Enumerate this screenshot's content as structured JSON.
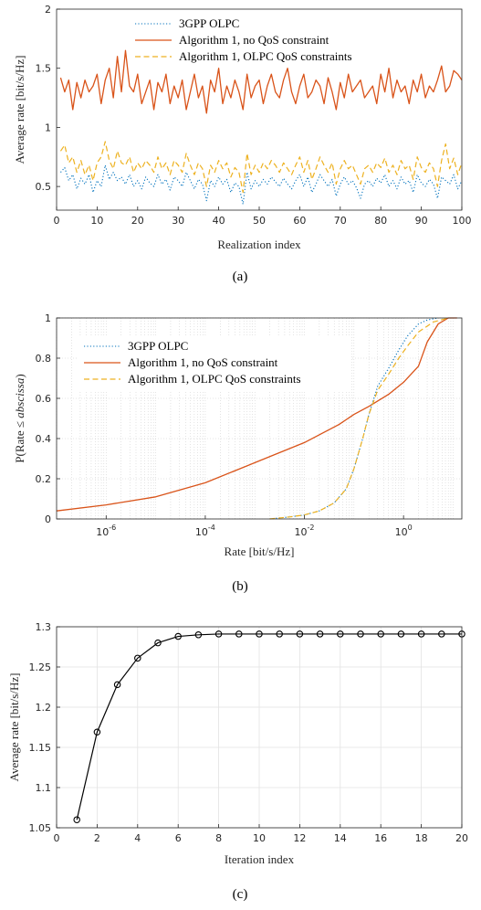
{
  "colors": {
    "blue": "#0072BD",
    "orange": "#D95319",
    "yellow": "#EDB120",
    "black": "#000000"
  },
  "chart_data": [
    {
      "type": "line",
      "caption": "(a)",
      "xlabel": "Realization index",
      "ylabel": "Average rate [bit/s/Hz]",
      "xlim": [
        0,
        100
      ],
      "ylim": [
        0.3,
        2
      ],
      "xticks": [
        0,
        10,
        20,
        30,
        40,
        50,
        60,
        70,
        80,
        90,
        100
      ],
      "yticks": [
        0.5,
        1,
        1.5,
        2
      ],
      "ytick_labels": [
        "0.5",
        "1",
        "1.5",
        "2"
      ],
      "grid": false,
      "legend": "top-center",
      "series": [
        {
          "name": "3GPP OLPC",
          "style": "dotted",
          "values": [
            0.62,
            0.66,
            0.55,
            0.6,
            0.48,
            0.57,
            0.52,
            0.6,
            0.45,
            0.55,
            0.5,
            0.68,
            0.56,
            0.62,
            0.55,
            0.58,
            0.52,
            0.6,
            0.5,
            0.55,
            0.48,
            0.58,
            0.53,
            0.5,
            0.6,
            0.52,
            0.56,
            0.47,
            0.58,
            0.55,
            0.5,
            0.62,
            0.55,
            0.48,
            0.56,
            0.52,
            0.38,
            0.55,
            0.5,
            0.58,
            0.52,
            0.56,
            0.45,
            0.53,
            0.5,
            0.35,
            0.62,
            0.48,
            0.55,
            0.5,
            0.56,
            0.52,
            0.58,
            0.54,
            0.5,
            0.57,
            0.52,
            0.48,
            0.55,
            0.6,
            0.5,
            0.58,
            0.45,
            0.52,
            0.6,
            0.55,
            0.5,
            0.56,
            0.42,
            0.52,
            0.58,
            0.52,
            0.55,
            0.49,
            0.4,
            0.52,
            0.55,
            0.5,
            0.57,
            0.53,
            0.6,
            0.5,
            0.55,
            0.48,
            0.58,
            0.52,
            0.55,
            0.45,
            0.6,
            0.53,
            0.5,
            0.56,
            0.52,
            0.4,
            0.58,
            0.55,
            0.52,
            0.6,
            0.48,
            0.55
          ]
        },
        {
          "name": "Algorithm 1, no QoS constraint",
          "style": "solid",
          "values": [
            1.42,
            1.3,
            1.4,
            1.15,
            1.38,
            1.25,
            1.4,
            1.3,
            1.35,
            1.45,
            1.2,
            1.4,
            1.5,
            1.25,
            1.6,
            1.3,
            1.65,
            1.35,
            1.3,
            1.45,
            1.2,
            1.3,
            1.4,
            1.15,
            1.38,
            1.3,
            1.45,
            1.2,
            1.35,
            1.25,
            1.4,
            1.15,
            1.3,
            1.45,
            1.25,
            1.35,
            1.12,
            1.4,
            1.3,
            1.5,
            1.2,
            1.35,
            1.25,
            1.4,
            1.3,
            1.15,
            1.45,
            1.25,
            1.35,
            1.4,
            1.2,
            1.35,
            1.45,
            1.3,
            1.25,
            1.4,
            1.5,
            1.3,
            1.2,
            1.35,
            1.45,
            1.25,
            1.3,
            1.4,
            1.35,
            1.2,
            1.42,
            1.3,
            1.15,
            1.38,
            1.25,
            1.45,
            1.3,
            1.35,
            1.4,
            1.25,
            1.3,
            1.35,
            1.2,
            1.45,
            1.3,
            1.5,
            1.25,
            1.4,
            1.3,
            1.35,
            1.2,
            1.4,
            1.3,
            1.45,
            1.25,
            1.35,
            1.3,
            1.4,
            1.52,
            1.3,
            1.35,
            1.48,
            1.45,
            1.4
          ]
        },
        {
          "name": "Algorithm 1, OLPC QoS constraints",
          "style": "dashed",
          "values": [
            0.8,
            0.85,
            0.7,
            0.75,
            0.62,
            0.72,
            0.6,
            0.68,
            0.55,
            0.7,
            0.75,
            0.88,
            0.72,
            0.65,
            0.8,
            0.7,
            0.68,
            0.75,
            0.62,
            0.7,
            0.65,
            0.72,
            0.68,
            0.62,
            0.75,
            0.65,
            0.7,
            0.6,
            0.72,
            0.68,
            0.62,
            0.78,
            0.68,
            0.6,
            0.7,
            0.65,
            0.5,
            0.68,
            0.62,
            0.72,
            0.65,
            0.7,
            0.58,
            0.66,
            0.62,
            0.45,
            0.78,
            0.6,
            0.68,
            0.62,
            0.7,
            0.65,
            0.72,
            0.68,
            0.62,
            0.7,
            0.65,
            0.6,
            0.68,
            0.75,
            0.62,
            0.72,
            0.56,
            0.65,
            0.75,
            0.68,
            0.62,
            0.7,
            0.52,
            0.65,
            0.72,
            0.65,
            0.68,
            0.6,
            0.52,
            0.65,
            0.68,
            0.62,
            0.7,
            0.66,
            0.74,
            0.62,
            0.68,
            0.6,
            0.72,
            0.65,
            0.68,
            0.56,
            0.75,
            0.66,
            0.62,
            0.7,
            0.65,
            0.5,
            0.72,
            0.86,
            0.65,
            0.74,
            0.6,
            0.7
          ]
        }
      ]
    },
    {
      "type": "line",
      "caption": "(b)",
      "xlabel": "Rate [bit/s/Hz]",
      "ylabel_parts": [
        "P(Rate ≤ ",
        "abscissa",
        ")"
      ],
      "xscale": "log",
      "xlim": [
        1e-07,
        15
      ],
      "ylim": [
        0,
        1
      ],
      "xticks": [
        1e-06,
        0.0001,
        0.01,
        1
      ],
      "xtick_labels": [
        {
          "base": "10",
          "exp": "-6"
        },
        {
          "base": "10",
          "exp": "-4"
        },
        {
          "base": "10",
          "exp": "-2"
        },
        {
          "base": "10",
          "exp": "0"
        }
      ],
      "yticks": [
        0,
        0.2,
        0.4,
        0.6,
        0.8,
        1
      ],
      "ytick_labels": [
        "0",
        "0.2",
        "0.4",
        "0.6",
        "0.8",
        "1"
      ],
      "grid": true,
      "legend": "top-left",
      "series": [
        {
          "name": "3GPP OLPC",
          "style": "dotted",
          "x": [
            0.002,
            0.005,
            0.01,
            0.02,
            0.04,
            0.07,
            0.1,
            0.15,
            0.2,
            0.3,
            0.5,
            0.8,
            1.2,
            2,
            3,
            5
          ],
          "y": [
            0,
            0.01,
            0.02,
            0.04,
            0.08,
            0.15,
            0.25,
            0.4,
            0.52,
            0.66,
            0.75,
            0.84,
            0.91,
            0.97,
            0.99,
            1
          ]
        },
        {
          "name": "Algorithm 1, no QoS constraint",
          "style": "solid",
          "x": [
            1e-07,
            1e-06,
            1e-05,
            0.0001,
            0.001,
            0.01,
            0.05,
            0.1,
            0.2,
            0.5,
            1,
            2,
            3,
            5,
            8,
            12
          ],
          "y": [
            0.04,
            0.07,
            0.11,
            0.18,
            0.28,
            0.38,
            0.47,
            0.52,
            0.56,
            0.62,
            0.68,
            0.76,
            0.88,
            0.97,
            1,
            1
          ]
        },
        {
          "name": "Algorithm 1, OLPC QoS constraints",
          "style": "dashed",
          "x": [
            0.002,
            0.005,
            0.01,
            0.02,
            0.04,
            0.07,
            0.1,
            0.15,
            0.2,
            0.3,
            0.5,
            0.8,
            1.2,
            2,
            4,
            8
          ],
          "y": [
            0,
            0.01,
            0.02,
            0.04,
            0.08,
            0.15,
            0.25,
            0.4,
            0.52,
            0.64,
            0.72,
            0.8,
            0.86,
            0.93,
            0.98,
            1
          ]
        }
      ]
    },
    {
      "type": "line",
      "caption": "(c)",
      "xlabel": "Iteration index",
      "ylabel": "Average rate [bit/s/Hz]",
      "xlim": [
        0,
        20
      ],
      "ylim": [
        1.05,
        1.3
      ],
      "xticks": [
        0,
        2,
        4,
        6,
        8,
        10,
        12,
        14,
        16,
        18,
        20
      ],
      "yticks": [
        1.05,
        1.1,
        1.15,
        1.2,
        1.25,
        1.3
      ],
      "ytick_labels": [
        "1.05",
        "1.1",
        "1.15",
        "1.2",
        "1.25",
        "1.3"
      ],
      "grid": true,
      "legend": "none",
      "series": [
        {
          "style": "solid-circle",
          "x": [
            1,
            2,
            3,
            4,
            5,
            6,
            7,
            8,
            9,
            10,
            11,
            12,
            13,
            14,
            15,
            16,
            17,
            18,
            19,
            20
          ],
          "y": [
            1.06,
            1.169,
            1.228,
            1.261,
            1.28,
            1.288,
            1.29,
            1.291,
            1.291,
            1.291,
            1.291,
            1.291,
            1.291,
            1.291,
            1.291,
            1.291,
            1.291,
            1.291,
            1.291,
            1.291
          ]
        }
      ]
    }
  ]
}
